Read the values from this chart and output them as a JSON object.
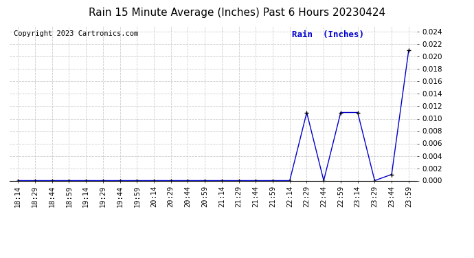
{
  "title": "Rain 15 Minute Average (Inches) Past 6 Hours 20230424",
  "copyright": "Copyright 2023 Cartronics.com",
  "legend_label": "Rain  (Inches)",
  "x_labels": [
    "18:14",
    "18:29",
    "18:44",
    "18:59",
    "19:14",
    "19:29",
    "19:44",
    "19:59",
    "20:14",
    "20:29",
    "20:44",
    "20:59",
    "21:14",
    "21:29",
    "21:44",
    "21:59",
    "22:14",
    "22:29",
    "22:44",
    "22:59",
    "23:14",
    "23:29",
    "23:44",
    "23:59"
  ],
  "y_values": [
    0.0,
    0.0,
    0.0,
    0.0,
    0.0,
    0.0,
    0.0,
    0.0,
    0.0,
    0.0,
    0.0,
    0.0,
    0.0,
    0.0,
    0.0,
    0.0,
    0.0,
    0.011,
    0.0,
    0.011,
    0.011,
    0.0,
    0.001,
    0.021
  ],
  "line_color": "#0000cc",
  "marker_color": "#000000",
  "grid_color": "#cccccc",
  "bg_color": "#ffffff",
  "title_color": "#000000",
  "copyright_color": "#000000",
  "legend_color": "#0000cc",
  "ylim": [
    0.0,
    0.025
  ],
  "yticks": [
    0.0,
    0.002,
    0.004,
    0.006,
    0.008,
    0.01,
    0.012,
    0.014,
    0.016,
    0.018,
    0.02,
    0.022,
    0.024
  ],
  "title_fontsize": 11,
  "copyright_fontsize": 7.5,
  "legend_fontsize": 9,
  "axis_tick_fontsize": 7.5
}
